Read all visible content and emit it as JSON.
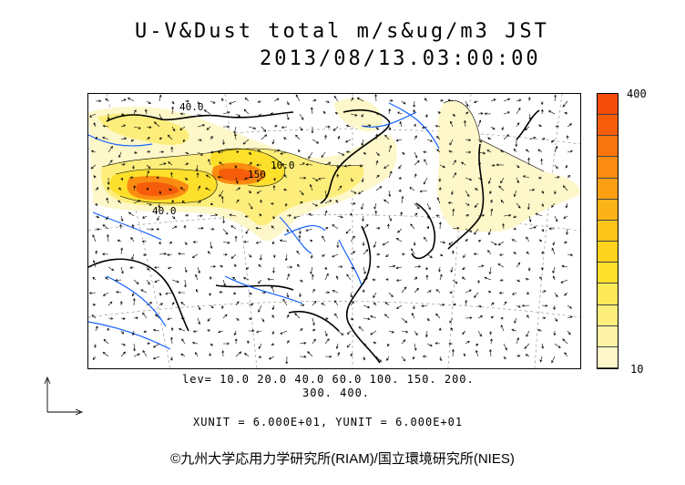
{
  "title": {
    "line1": "U-V&Dust total m/s&ug/m3 JST",
    "line2": "2013/08/13.03:00:00"
  },
  "legend": {
    "max_label": "400",
    "min_label": "10",
    "colors": [
      "#fdf7c9",
      "#fdf3a8",
      "#fdee7c",
      "#fde857",
      "#fde02c",
      "#fdd31d",
      "#fdc41a",
      "#fcb317",
      "#fba013",
      "#fa8c11",
      "#f8750e",
      "#f65d0b",
      "#f44b0a"
    ]
  },
  "levels": {
    "line1": "lev= 10.0 20.0 40.0 60.0 100. 150. 200.",
    "line2": "300. 400."
  },
  "units": "XUNIT = 6.000E+01, YUNIT = 6.000E+01",
  "contour_labels": [
    "40.0",
    "150",
    "40.0",
    "10.0"
  ],
  "credit": "©九州大学応用力学研究所(RIAM)/国立環境研究所(NIES)"
}
